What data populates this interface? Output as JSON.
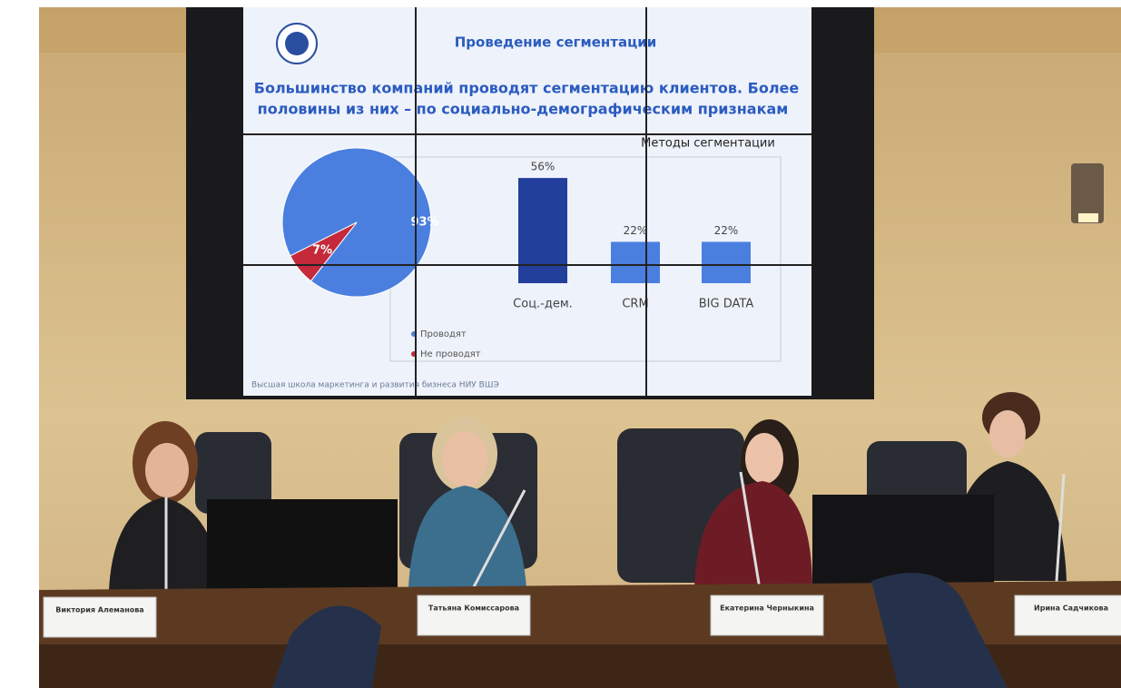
{
  "slide": {
    "title": "Проведение сегментации",
    "headline": [
      "Большинство компаний проводят сегментацию клиентов. Более",
      "половины из них – по социально-демографическим признакам"
    ],
    "pie": {
      "values": [
        93,
        7
      ],
      "value_labels": [
        "93%",
        "7%"
      ],
      "colors": [
        "#4a7fdf",
        "#c42a3a"
      ],
      "legend": [
        "Проводят",
        "Не проводят"
      ]
    },
    "bar_chart": {
      "title": "Методы сегментации",
      "categories": [
        "Соц.-дем.",
        "CRM",
        "BIG DATA"
      ],
      "values": [
        56,
        22,
        22
      ],
      "value_labels": [
        "56%",
        "22%",
        "22%"
      ],
      "colors": [
        "#223f9c",
        "#4a7fdf",
        "#4a7fdf"
      ]
    },
    "footer": "Высшая школа маркетинга и развития бизнеса НИУ ВШЭ"
  },
  "nameplates": [
    "Виктория Алеманова",
    "Татьяна Комиссарова",
    "Екатерина Черныкина",
    "Ирина Садчикова"
  ]
}
